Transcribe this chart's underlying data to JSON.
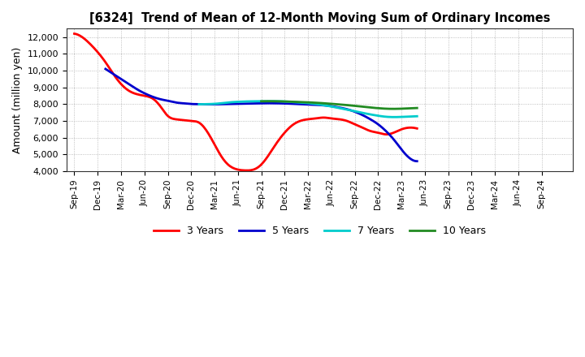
{
  "title": "[6324]  Trend of Mean of 12-Month Moving Sum of Ordinary Incomes",
  "ylabel": "Amount (million yen)",
  "ylim": [
    4000,
    12500
  ],
  "yticks": [
    4000,
    5000,
    6000,
    7000,
    8000,
    9000,
    10000,
    11000,
    12000
  ],
  "background_color": "#ffffff",
  "grid_color": "#aaaaaa",
  "x_labels": [
    "Sep-19",
    "Dec-19",
    "Mar-20",
    "Jun-20",
    "Sep-20",
    "Dec-20",
    "Mar-21",
    "Jun-21",
    "Sep-21",
    "Dec-21",
    "Mar-22",
    "Jun-22",
    "Sep-22",
    "Dec-22",
    "Mar-23",
    "Jun-23",
    "Sep-23",
    "Dec-23",
    "Mar-24",
    "Jun-24",
    "Sep-24"
  ],
  "series": {
    "3 Years": {
      "color": "#ff0000",
      "points": [
        [
          0,
          12200
        ],
        [
          1,
          12000
        ],
        [
          2,
          11600
        ],
        [
          3,
          11100
        ],
        [
          4,
          10500
        ],
        [
          5,
          9800
        ],
        [
          6,
          9200
        ],
        [
          7,
          8800
        ],
        [
          8,
          8600
        ],
        [
          9,
          8500
        ],
        [
          10,
          8350
        ],
        [
          11,
          7900
        ],
        [
          12,
          7300
        ],
        [
          13,
          7100
        ],
        [
          14,
          7050
        ],
        [
          15,
          7000
        ],
        [
          16,
          6900
        ],
        [
          17,
          6400
        ],
        [
          18,
          5600
        ],
        [
          19,
          4800
        ],
        [
          20,
          4300
        ],
        [
          21,
          4100
        ],
        [
          22,
          4050
        ],
        [
          23,
          4100
        ],
        [
          24,
          4400
        ],
        [
          25,
          5000
        ],
        [
          26,
          5700
        ],
        [
          27,
          6300
        ],
        [
          28,
          6750
        ],
        [
          29,
          7000
        ],
        [
          30,
          7100
        ],
        [
          31,
          7150
        ],
        [
          32,
          7200
        ],
        [
          33,
          7150
        ],
        [
          34,
          7100
        ],
        [
          35,
          7000
        ],
        [
          36,
          6800
        ],
        [
          37,
          6600
        ],
        [
          38,
          6400
        ],
        [
          39,
          6300
        ],
        [
          40,
          6200
        ],
        [
          41,
          6300
        ],
        [
          42,
          6500
        ],
        [
          43,
          6600
        ],
        [
          44,
          6550
        ]
      ]
    },
    "5 Years": {
      "color": "#0000cd",
      "points": [
        [
          4,
          10100
        ],
        [
          5,
          9800
        ],
        [
          6,
          9500
        ],
        [
          7,
          9200
        ],
        [
          8,
          8900
        ],
        [
          9,
          8650
        ],
        [
          10,
          8450
        ],
        [
          11,
          8300
        ],
        [
          12,
          8200
        ],
        [
          13,
          8100
        ],
        [
          14,
          8050
        ],
        [
          15,
          8010
        ],
        [
          16,
          8000
        ],
        [
          17,
          7990
        ],
        [
          18,
          7990
        ],
        [
          19,
          8000
        ],
        [
          20,
          8010
        ],
        [
          21,
          8020
        ],
        [
          22,
          8030
        ],
        [
          23,
          8040
        ],
        [
          24,
          8050
        ],
        [
          25,
          8055
        ],
        [
          26,
          8050
        ],
        [
          27,
          8040
        ],
        [
          28,
          8020
        ],
        [
          29,
          8000
        ],
        [
          30,
          7980
        ],
        [
          31,
          7960
        ],
        [
          32,
          7930
        ],
        [
          33,
          7880
        ],
        [
          34,
          7800
        ],
        [
          35,
          7700
        ],
        [
          36,
          7550
        ],
        [
          37,
          7350
        ],
        [
          38,
          7100
        ],
        [
          39,
          6800
        ],
        [
          40,
          6400
        ],
        [
          41,
          5900
        ],
        [
          42,
          5300
        ],
        [
          43,
          4800
        ],
        [
          44,
          4600
        ]
      ]
    },
    "7 Years": {
      "color": "#00cccc",
      "points": [
        [
          16,
          7990
        ],
        [
          17,
          8000
        ],
        [
          18,
          8020
        ],
        [
          19,
          8060
        ],
        [
          20,
          8110
        ],
        [
          21,
          8140
        ],
        [
          22,
          8160
        ],
        [
          23,
          8170
        ],
        [
          24,
          8175
        ],
        [
          25,
          8180
        ],
        [
          26,
          8175
        ],
        [
          27,
          8160
        ],
        [
          28,
          8130
        ],
        [
          29,
          8100
        ],
        [
          30,
          8060
        ],
        [
          31,
          8010
        ],
        [
          32,
          7940
        ],
        [
          33,
          7860
        ],
        [
          34,
          7770
        ],
        [
          35,
          7680
        ],
        [
          36,
          7580
        ],
        [
          37,
          7480
        ],
        [
          38,
          7390
        ],
        [
          39,
          7310
        ],
        [
          40,
          7250
        ],
        [
          41,
          7230
        ],
        [
          42,
          7240
        ],
        [
          43,
          7260
        ],
        [
          44,
          7280
        ]
      ]
    },
    "10 Years": {
      "color": "#228b22",
      "points": [
        [
          24,
          8170
        ],
        [
          25,
          8175
        ],
        [
          26,
          8170
        ],
        [
          27,
          8160
        ],
        [
          28,
          8145
        ],
        [
          29,
          8130
        ],
        [
          30,
          8110
        ],
        [
          31,
          8085
        ],
        [
          32,
          8055
        ],
        [
          33,
          8020
        ],
        [
          34,
          7985
        ],
        [
          35,
          7945
        ],
        [
          36,
          7900
        ],
        [
          37,
          7850
        ],
        [
          38,
          7800
        ],
        [
          39,
          7760
        ],
        [
          40,
          7730
        ],
        [
          41,
          7720
        ],
        [
          42,
          7730
        ],
        [
          43,
          7750
        ],
        [
          44,
          7770
        ]
      ]
    }
  },
  "legend_entries": [
    "3 Years",
    "5 Years",
    "7 Years",
    "10 Years"
  ],
  "legend_colors": [
    "#ff0000",
    "#0000cd",
    "#00cccc",
    "#228b22"
  ]
}
